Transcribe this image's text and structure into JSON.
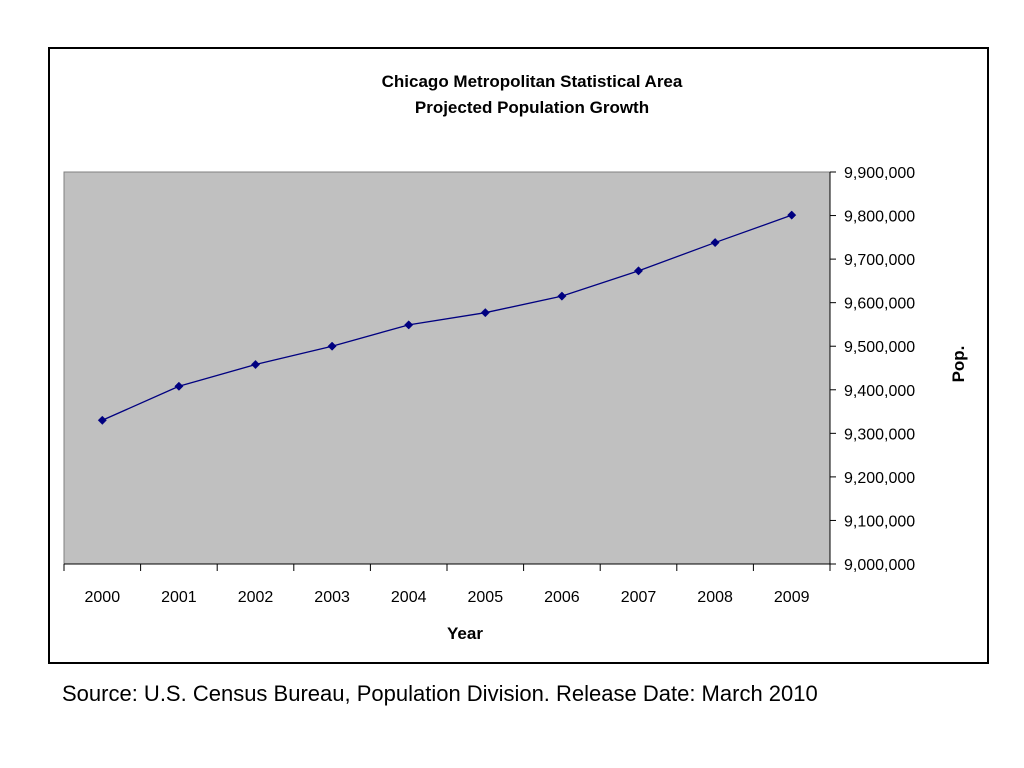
{
  "chart_data": {
    "type": "line",
    "title": [
      "Chicago Metropolitan Statistical Area",
      "Projected Population Growth"
    ],
    "xlabel": "Year",
    "ylabel": "Pop.",
    "categories": [
      "2000",
      "2001",
      "2002",
      "2003",
      "2004",
      "2005",
      "2006",
      "2007",
      "2008",
      "2009"
    ],
    "series": [
      {
        "values": [
          9330000,
          9408000,
          9458000,
          9500000,
          9549000,
          9577000,
          9615000,
          9673000,
          9738000,
          9801000
        ]
      }
    ],
    "ylim": [
      9000000,
      9900000
    ],
    "ytick_step": 100000,
    "y_axis_side": "right",
    "grid": false,
    "legend": "none",
    "colors": {
      "plot_bg": "#c0c0c0",
      "line": "#000080",
      "marker": "#000080"
    },
    "marker": "diamond"
  },
  "source": "Source: U.S. Census Bureau, Population Division. Release Date: March 2010"
}
